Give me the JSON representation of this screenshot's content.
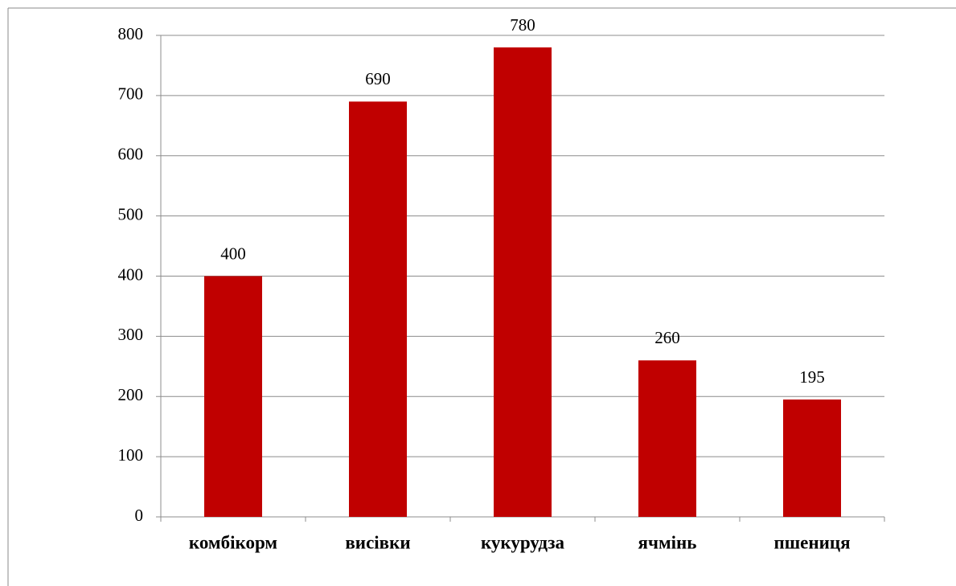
{
  "chart_data": {
    "type": "bar",
    "categories": [
      "комбікорм",
      "висівки",
      "кукурудза",
      "ячмінь",
      "пшениця"
    ],
    "values": [
      400,
      690,
      780,
      260,
      195
    ],
    "color": "#c00000",
    "ylim": [
      0,
      800
    ],
    "yticks": [
      0,
      100,
      200,
      300,
      400,
      500,
      600,
      700,
      800
    ],
    "grid": true
  }
}
